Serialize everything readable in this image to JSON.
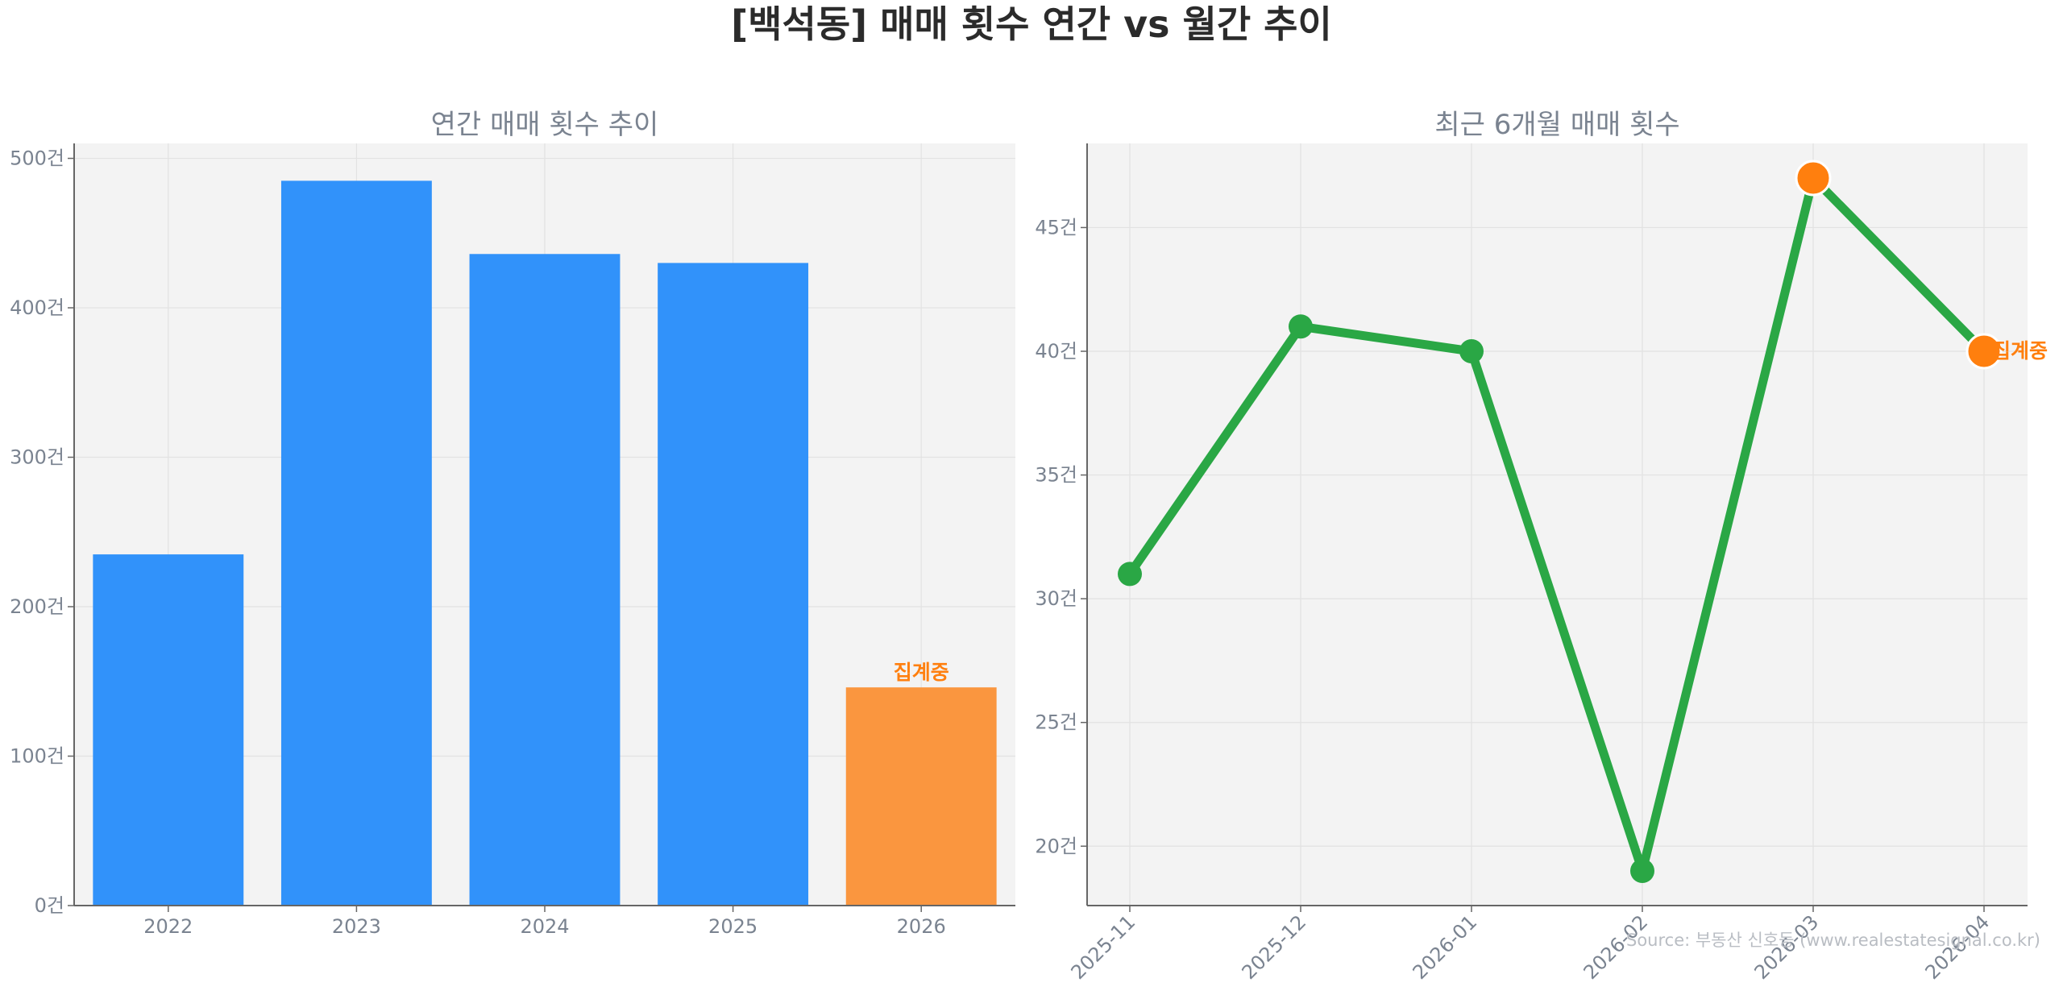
{
  "title": "[백석동] 매매 횟수 연간 vs 월간 추이",
  "source": "Source: 부동산 신호등 (www.realestatesignal.co.kr)",
  "colors": {
    "bar": "#3192fa",
    "bar_highlight": "#fa963f",
    "line": "#2aa745",
    "marker_highlight": "#ff7f0e",
    "annotation": "#ff7f0e",
    "panel_bg": "#f3f3f3"
  },
  "chart_data": [
    {
      "type": "bar",
      "title": "연간 매매 횟수 추이",
      "categories": [
        "2022",
        "2023",
        "2024",
        "2025",
        "2026"
      ],
      "values": [
        235,
        485,
        436,
        430,
        146
      ],
      "highlight_index": 4,
      "annotation": "집계중",
      "ylim": [
        0,
        510
      ],
      "yticks": [
        0,
        100,
        200,
        300,
        400,
        500
      ],
      "yunit": "건",
      "grid": true
    },
    {
      "type": "line",
      "title": "최근 6개월 매매 횟수",
      "categories": [
        "2025-11",
        "2025-12",
        "2026-01",
        "2026-02",
        "2026-03",
        "2026-04"
      ],
      "values": [
        31,
        41,
        40,
        19,
        47,
        40
      ],
      "highlight_indices": [
        4,
        5
      ],
      "annotation": "집계중",
      "ylim": [
        17.6,
        48.4
      ],
      "yticks": [
        20,
        25,
        30,
        35,
        40,
        45
      ],
      "yunit": "건",
      "grid": true
    }
  ]
}
